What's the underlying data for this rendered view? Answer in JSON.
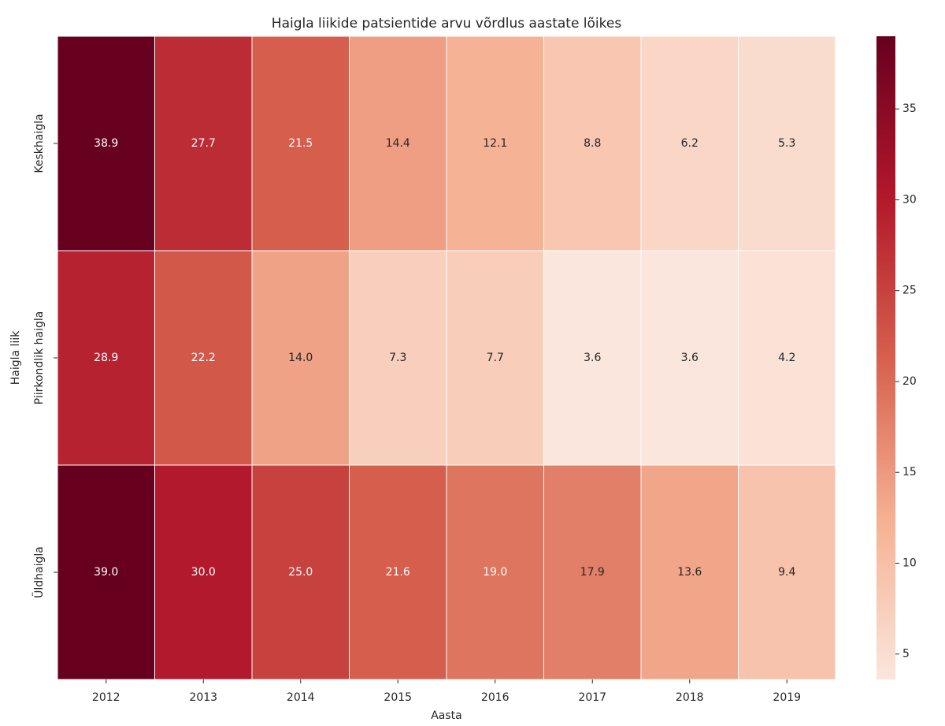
{
  "chart_data": {
    "type": "heatmap",
    "title": "Haigla liikide patsientide arvu võrdlus aastate lõikes",
    "xlabel": "Aasta",
    "ylabel": "Haigla liik",
    "x": [
      "2012",
      "2013",
      "2014",
      "2015",
      "2016",
      "2017",
      "2018",
      "2019"
    ],
    "y": [
      "Keskhaigla",
      "Piirkondlik haigla",
      "Üldhaigla"
    ],
    "values": [
      [
        38.9,
        27.7,
        21.5,
        14.4,
        12.1,
        8.8,
        6.2,
        5.3
      ],
      [
        28.9,
        22.2,
        14.0,
        7.3,
        7.7,
        3.6,
        3.6,
        4.2
      ],
      [
        39.0,
        30.0,
        25.0,
        21.6,
        19.0,
        17.9,
        13.6,
        9.4
      ]
    ],
    "value_labels": [
      [
        "38.9",
        "27.7",
        "21.5",
        "14.4",
        "12.1",
        "8.8",
        "6.2",
        "5.3"
      ],
      [
        "28.9",
        "22.2",
        "14.0",
        "7.3",
        "7.7",
        "3.6",
        "3.6",
        "4.2"
      ],
      [
        "39.0",
        "30.0",
        "25.0",
        "21.6",
        "19.0",
        "17.9",
        "13.6",
        "9.4"
      ]
    ],
    "clim": [
      3.6,
      39.0
    ],
    "cticks": [
      5,
      10,
      15,
      20,
      25,
      30,
      35
    ],
    "colormap": [
      "#fae6dc",
      "#f6b092",
      "#d6604d",
      "#b2182b",
      "#67001f"
    ]
  }
}
